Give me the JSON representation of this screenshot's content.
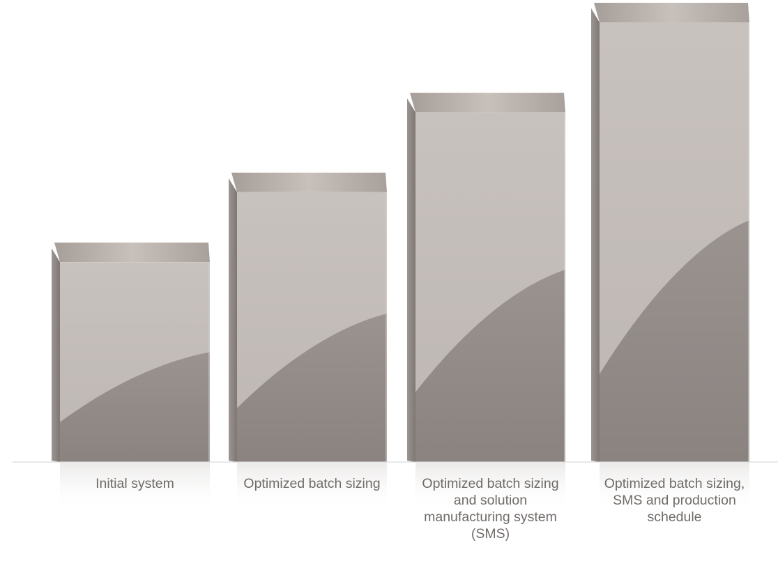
{
  "chart_data": {
    "type": "bar",
    "title": "",
    "xlabel": "",
    "ylabel": "",
    "categories": [
      "Initial system",
      "Optimized batch sizing",
      "Optimized batch sizing and solution manufacturing system (SMS)",
      "Optimized batch sizing, SMS and production schedule"
    ],
    "values": [
      1.0,
      1.35,
      1.75,
      2.2
    ],
    "ylim": [
      0,
      2.2
    ],
    "grid": false,
    "legend": "none",
    "colors": {
      "bar_light": "#c9c3bf",
      "bar_dark": "#918a87",
      "bar_top": "#b3aba6",
      "bar_side": "#8b8480",
      "baseline": "#d6d6d6",
      "label": "#6f6b68"
    }
  }
}
